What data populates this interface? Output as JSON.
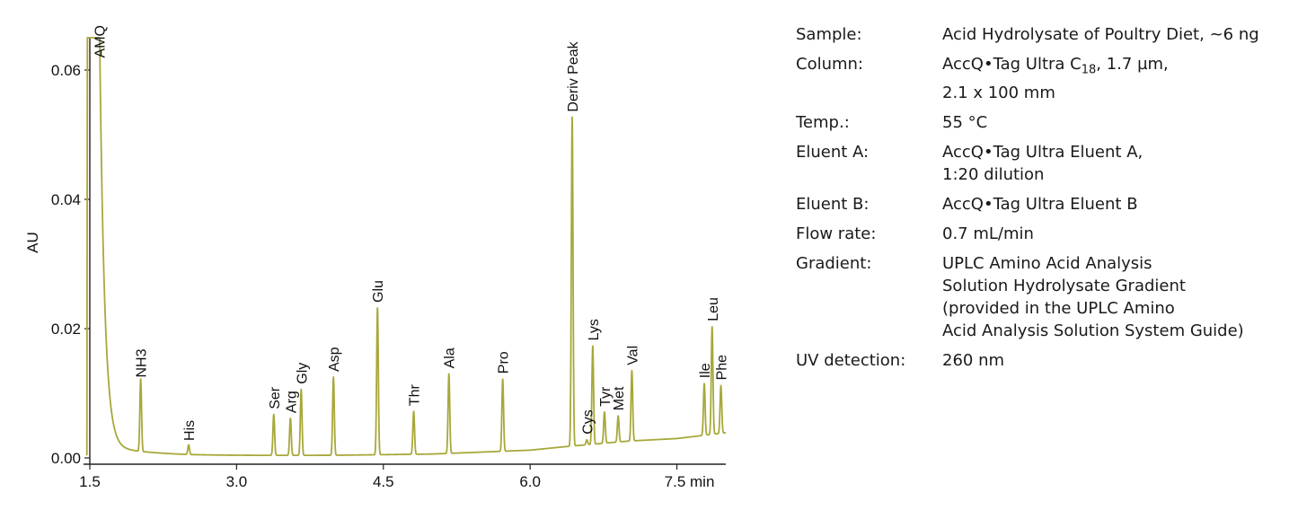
{
  "chart_data": {
    "type": "line",
    "title": "",
    "xlabel": "",
    "x_unit": "min",
    "ylabel": "AU",
    "xlim": [
      1.5,
      8.0
    ],
    "ylim": [
      0.0,
      0.065
    ],
    "x_ticks": [
      1.5,
      3.0,
      4.5,
      6.0,
      7.5
    ],
    "x_tick_labels": [
      "1.5",
      "3.0",
      "4.5",
      "6.0",
      "7.5"
    ],
    "y_ticks": [
      0.0,
      0.02,
      0.04,
      0.06
    ],
    "y_tick_labels": [
      "0.00",
      "0.02",
      "0.04",
      "0.06"
    ],
    "grid": false,
    "legend": "none",
    "line_color": "#a7a83a",
    "baseline": [
      {
        "x": 1.46,
        "y": 0.0005
      },
      {
        "x": 2.5,
        "y": 0.0003
      },
      {
        "x": 4.0,
        "y": 0.0004
      },
      {
        "x": 5.0,
        "y": 0.0006
      },
      {
        "x": 6.0,
        "y": 0.0012
      },
      {
        "x": 6.4,
        "y": 0.0018
      },
      {
        "x": 7.0,
        "y": 0.0026
      },
      {
        "x": 7.5,
        "y": 0.003
      },
      {
        "x": 8.0,
        "y": 0.0039
      }
    ],
    "peaks": [
      {
        "name": "AMQ",
        "x": 1.55,
        "y": 0.065
      },
      {
        "name": "NH3",
        "x": 2.02,
        "y": 0.0116
      },
      {
        "name": "His",
        "x": 2.51,
        "y": 0.0018
      },
      {
        "name": "Ser",
        "x": 3.38,
        "y": 0.0067
      },
      {
        "name": "Arg",
        "x": 3.55,
        "y": 0.0061
      },
      {
        "name": "Gly",
        "x": 3.66,
        "y": 0.0106
      },
      {
        "name": "Asp",
        "x": 3.99,
        "y": 0.0125
      },
      {
        "name": "Glu",
        "x": 4.44,
        "y": 0.0232
      },
      {
        "name": "Thr",
        "x": 4.81,
        "y": 0.0072
      },
      {
        "name": "Ala",
        "x": 5.17,
        "y": 0.013
      },
      {
        "name": "Pro",
        "x": 5.72,
        "y": 0.0122
      },
      {
        "name": "Deriv Peak",
        "x": 6.43,
        "y": 0.0527
      },
      {
        "name": "Cys",
        "x": 6.58,
        "y": 0.0028
      },
      {
        "name": "Lys",
        "x": 6.64,
        "y": 0.0173
      },
      {
        "name": "Tyr",
        "x": 6.76,
        "y": 0.0071
      },
      {
        "name": "Met",
        "x": 6.9,
        "y": 0.0065
      },
      {
        "name": "Val",
        "x": 7.04,
        "y": 0.0135
      },
      {
        "name": "Ile",
        "x": 7.78,
        "y": 0.0115
      },
      {
        "name": "Leu",
        "x": 7.86,
        "y": 0.0203
      },
      {
        "name": "Phe",
        "x": 7.95,
        "y": 0.0112
      }
    ]
  },
  "conditions": [
    {
      "label": "Sample:",
      "value": "Acid Hydrolysate of Poultry Diet, ~6 ng"
    },
    {
      "label": "Column:",
      "value_html": "AccQ•Tag Ultra C<sub>18</sub>, 1.7 µm,<br>2.1 x 100 mm"
    },
    {
      "label": "Temp.:",
      "value": "55 °C"
    },
    {
      "label": "Eluent A:",
      "value": "AccQ•Tag Ultra Eluent A,\n1:20 dilution"
    },
    {
      "label": "Eluent B:",
      "value": "AccQ•Tag Ultra Eluent B"
    },
    {
      "label": "Flow rate:",
      "value": "0.7 mL/min"
    },
    {
      "label": "Gradient:",
      "value": "UPLC Amino Acid Analysis\nSolution Hydrolysate Gradient\n(provided in the UPLC Amino\nAcid Analysis Solution System Guide)"
    },
    {
      "label": "UV detection:",
      "value": "260 nm"
    }
  ]
}
